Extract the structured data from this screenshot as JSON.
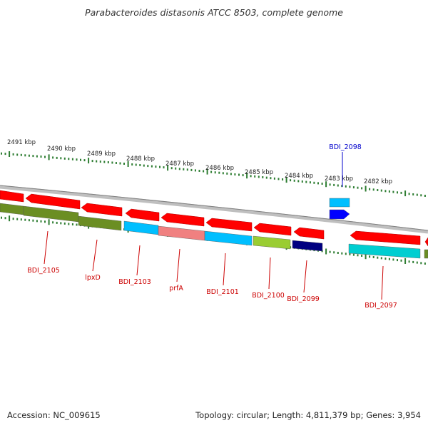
{
  "title": "Parabacteroides distasonis ATCC 8503, complete genome",
  "footer": {
    "accession": "Accession: NC_009615",
    "summary": "Topology: circular; Length: 4,811,379 bp; Genes: 3,954"
  },
  "colors": {
    "background": "#ffffff",
    "backbone": "#909090",
    "forward_gene": "#ff0000",
    "tick_color": "#2e7d32",
    "label_red": "#cc0000",
    "label_blue": "#0000cc"
  },
  "scale_labels": [
    "2491 kbp",
    "2490 kbp",
    "2489 kbp",
    "2488 kbp",
    "2487 kbp",
    "2486 kbp",
    "2485 kbp",
    "2484 kbp",
    "2483 kbp",
    "2482 kbp"
  ],
  "genes": [
    {
      "name": "BDI_2105",
      "color": "#6b8e23"
    },
    {
      "name": "lpxD",
      "color": "#6b8e23"
    },
    {
      "name": "BDI_2103",
      "color": "#00bfff"
    },
    {
      "name": "prfA",
      "color": "#f08080"
    },
    {
      "name": "BDI_2101",
      "color": "#00bfff"
    },
    {
      "name": "BDI_2100",
      "color": "#9acd32"
    },
    {
      "name": "BDI_2099",
      "color": "#000080"
    },
    {
      "name": "BDI_2098",
      "color": "#00bfff"
    },
    {
      "name": "BDI_2097",
      "color": "#00ced1"
    }
  ]
}
